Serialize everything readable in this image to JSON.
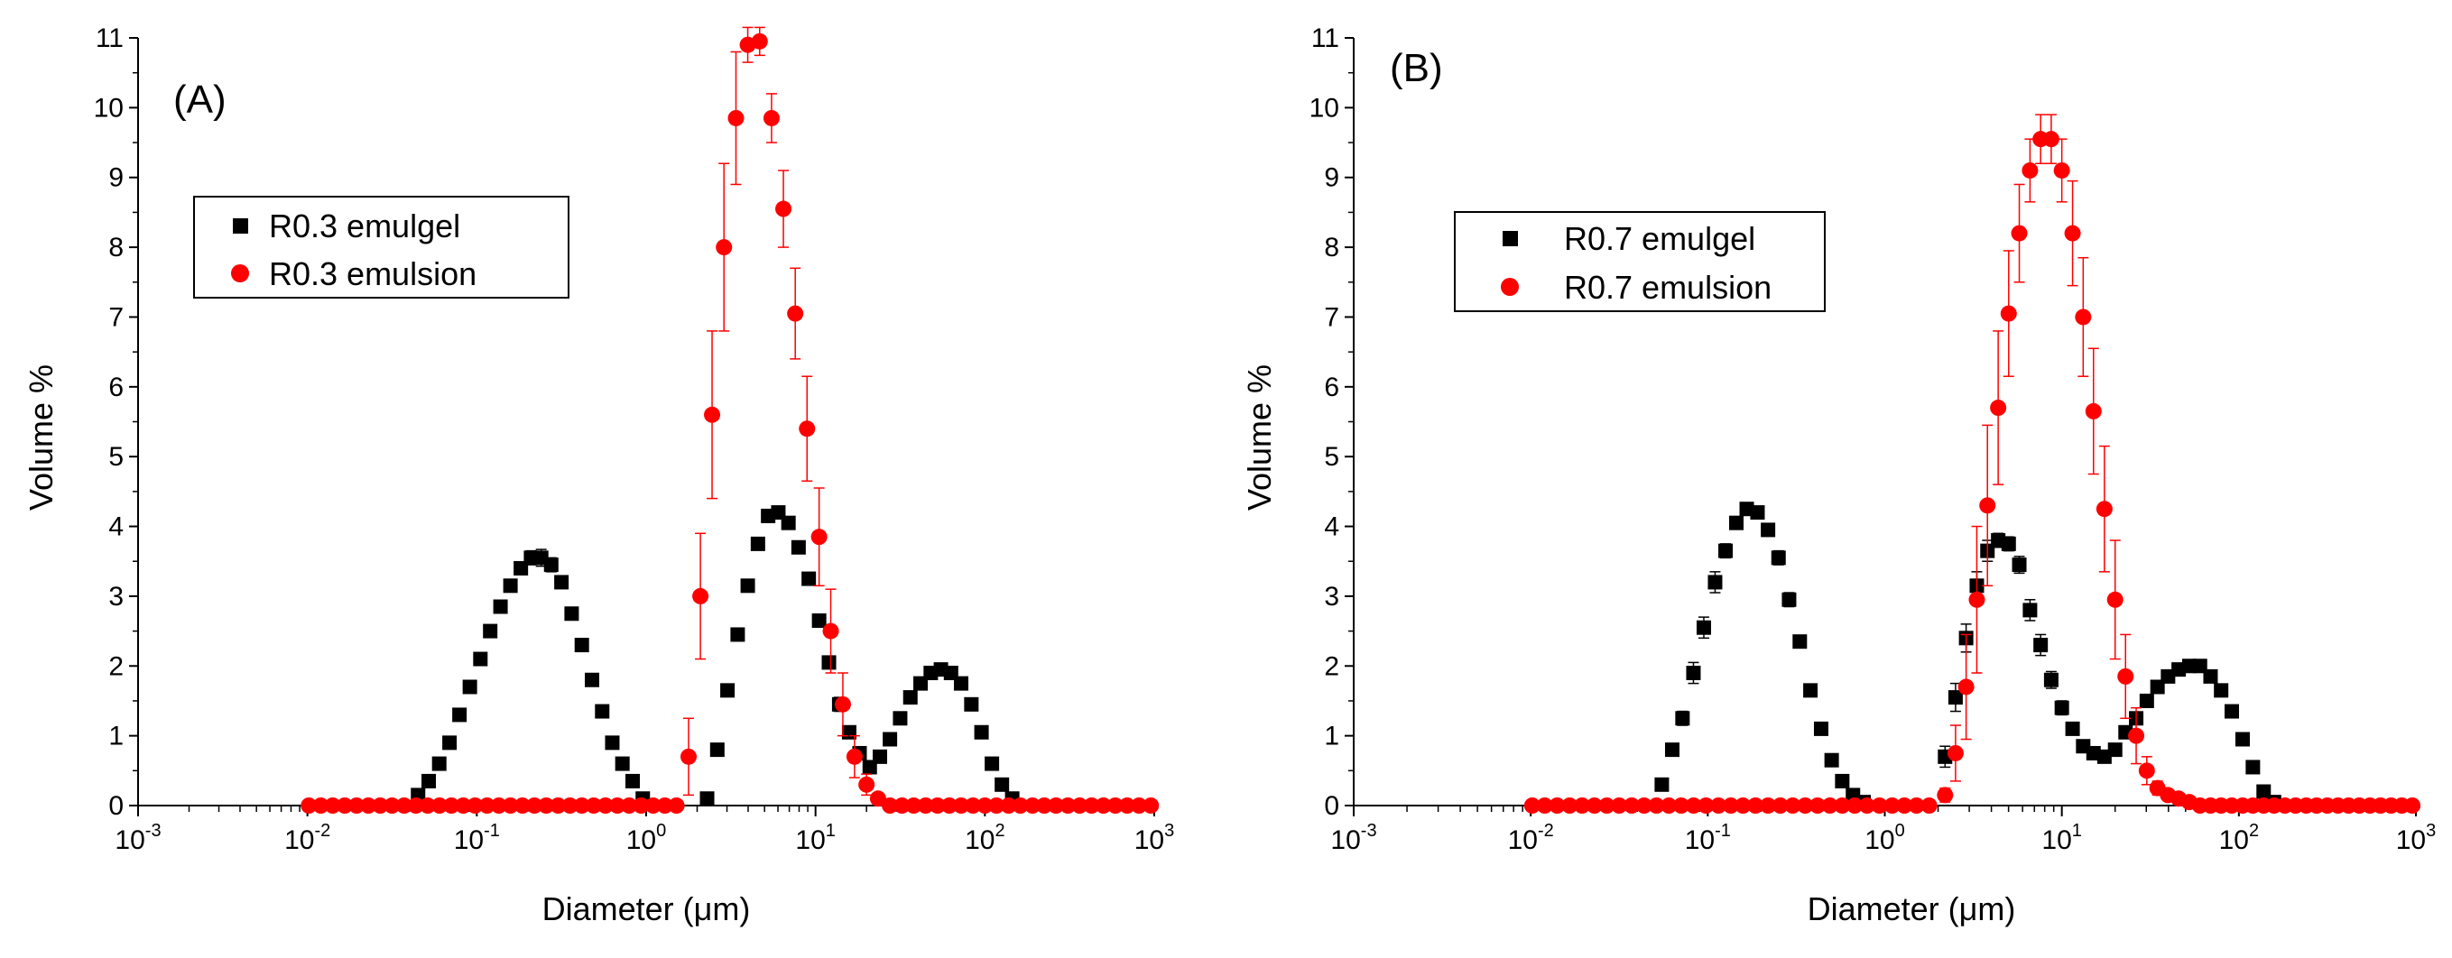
{
  "colors": {
    "emulgel": "#000000",
    "emulsion": "#ff0000",
    "axis": "#000000"
  },
  "chart_data": [
    {
      "type": "scatter",
      "panel_label": "(A)",
      "xlabel": "Diameter (μm)",
      "ylabel": "Volume %",
      "xscale": "log",
      "xlim": [
        0.001,
        1000
      ],
      "ylim": [
        0,
        11
      ],
      "xtick_labels": [
        "10-3",
        "10-2",
        "10-1",
        "100",
        "101",
        "102",
        "103"
      ],
      "ytick_labels": [
        "0",
        "1",
        "2",
        "3",
        "4",
        "5",
        "6",
        "7",
        "8",
        "9",
        "10",
        "11"
      ],
      "legend_position": "upper-left",
      "series": [
        {
          "name": "R0.3 emulgel",
          "marker": "square",
          "color": "#000000",
          "x": [
            0.045,
            0.052,
            0.06,
            0.069,
            0.079,
            0.091,
            0.105,
            0.12,
            0.138,
            0.158,
            0.182,
            0.209,
            0.24,
            0.275,
            0.316,
            0.363,
            0.417,
            0.479,
            0.55,
            0.631,
            0.724,
            0.832,
            0.955,
            2.29,
            2.63,
            3.02,
            3.47,
            3.98,
            4.57,
            5.25,
            6.03,
            6.92,
            7.94,
            9.12,
            10.5,
            12.0,
            13.8,
            15.8,
            18.2,
            20.9,
            24.0,
            27.5,
            31.6,
            36.3,
            41.7,
            47.9,
            55.0,
            63.1,
            72.4,
            83.2,
            95.5,
            110,
            126,
            145
          ],
          "y": [
            0.15,
            0.35,
            0.6,
            0.9,
            1.3,
            1.7,
            2.1,
            2.5,
            2.85,
            3.15,
            3.4,
            3.55,
            3.55,
            3.45,
            3.2,
            2.75,
            2.3,
            1.8,
            1.35,
            0.9,
            0.6,
            0.35,
            0.1,
            0.1,
            0.8,
            1.65,
            2.45,
            3.15,
            3.75,
            4.15,
            4.2,
            4.05,
            3.7,
            3.25,
            2.65,
            2.05,
            1.45,
            1.05,
            0.75,
            0.55,
            0.7,
            0.95,
            1.25,
            1.55,
            1.75,
            1.9,
            1.95,
            1.9,
            1.75,
            1.45,
            1.05,
            0.6,
            0.3,
            0.1
          ],
          "yerr": [
            0,
            0,
            0,
            0,
            0,
            0,
            0,
            0,
            0,
            0,
            0.08,
            0.1,
            0.12,
            0.1,
            0.08,
            0,
            0,
            0,
            0,
            0,
            0,
            0,
            0,
            0,
            0,
            0,
            0,
            0,
            0,
            0,
            0,
            0,
            0,
            0,
            0,
            0.08,
            0.1,
            0.08,
            0,
            0,
            0,
            0,
            0,
            0,
            0,
            0,
            0,
            0,
            0,
            0,
            0,
            0,
            0,
            0
          ]
        },
        {
          "name": "R0.3 emulsion",
          "marker": "circle",
          "color": "#ff0000",
          "x": [
            0.0102,
            0.012,
            0.0141,
            0.0166,
            0.0195,
            0.0229,
            0.0269,
            0.0316,
            0.0372,
            0.0437,
            0.0513,
            0.0603,
            0.0708,
            0.0832,
            0.0977,
            0.115,
            0.135,
            0.158,
            0.186,
            0.219,
            0.257,
            0.302,
            0.355,
            0.417,
            0.49,
            0.575,
            0.676,
            0.794,
            0.933,
            1.1,
            1.29,
            1.51,
            1.78,
            2.09,
            2.45,
            2.88,
            3.39,
            3.98,
            4.68,
            5.5,
            6.46,
            7.59,
            8.91,
            10.5,
            12.3,
            14.5,
            17.0,
            20.0,
            23.4,
            27.5,
            32.4,
            38.0,
            44.7,
            52.5,
            61.7,
            72.4,
            85.1,
            100,
            117,
            138,
            162,
            191,
            224,
            263,
            309,
            363,
            427,
            501,
            589,
            692,
            813,
            955
          ],
          "y": [
            0,
            0,
            0,
            0,
            0,
            0,
            0,
            0,
            0,
            0,
            0,
            0,
            0,
            0,
            0,
            0,
            0,
            0,
            0,
            0,
            0,
            0,
            0,
            0,
            0,
            0,
            0,
            0,
            0,
            0,
            0,
            0,
            0.7,
            3.0,
            5.6,
            8.0,
            9.85,
            10.9,
            10.95,
            9.85,
            8.55,
            7.05,
            5.4,
            3.85,
            2.5,
            1.45,
            0.7,
            0.3,
            0.1,
            0,
            0,
            0,
            0,
            0,
            0,
            0,
            0,
            0,
            0,
            0,
            0,
            0,
            0,
            0,
            0,
            0,
            0,
            0,
            0,
            0,
            0,
            0
          ],
          "yerr": [
            0,
            0,
            0,
            0,
            0,
            0,
            0,
            0,
            0,
            0,
            0,
            0,
            0,
            0,
            0,
            0,
            0,
            0,
            0,
            0,
            0,
            0,
            0,
            0,
            0,
            0,
            0,
            0,
            0,
            0,
            0,
            0,
            0.55,
            0.9,
            1.2,
            1.2,
            0.95,
            0.25,
            0.2,
            0.35,
            0.55,
            0.65,
            0.75,
            0.7,
            0.6,
            0.45,
            0.3,
            0.15,
            0,
            0,
            0,
            0,
            0,
            0,
            0,
            0,
            0,
            0,
            0,
            0,
            0,
            0,
            0,
            0,
            0,
            0,
            0,
            0,
            0,
            0,
            0,
            0
          ]
        }
      ]
    },
    {
      "type": "scatter",
      "panel_label": "(B)",
      "xlabel": "Diameter (μm)",
      "ylabel": "Volume %",
      "xscale": "log",
      "xlim": [
        0.001,
        1000
      ],
      "ylim": [
        0,
        11
      ],
      "xtick_labels": [
        "10-3",
        "10-2",
        "10-1",
        "100",
        "101",
        "102",
        "103"
      ],
      "ytick_labels": [
        "0",
        "1",
        "2",
        "3",
        "4",
        "5",
        "6",
        "7",
        "8",
        "9",
        "10",
        "11"
      ],
      "legend_position": "upper-left",
      "series": [
        {
          "name": "R0.7 emulgel",
          "marker": "square",
          "color": "#000000",
          "x": [
            0.055,
            0.063,
            0.072,
            0.083,
            0.095,
            0.11,
            0.126,
            0.145,
            0.166,
            0.191,
            0.219,
            0.251,
            0.288,
            0.331,
            0.38,
            0.437,
            0.501,
            0.575,
            0.661,
            0.759,
            2.19,
            2.51,
            2.88,
            3.31,
            3.8,
            4.37,
            5.01,
            5.75,
            6.61,
            7.59,
            8.71,
            10.0,
            11.5,
            13.2,
            15.1,
            17.4,
            20.0,
            22.9,
            26.3,
            30.2,
            34.7,
            39.8,
            45.7,
            52.5,
            60.3,
            69.2,
            79.4,
            91.2,
            105,
            120,
            138,
            158
          ],
          "y": [
            0.3,
            0.8,
            1.25,
            1.9,
            2.55,
            3.2,
            3.65,
            4.05,
            4.25,
            4.2,
            3.95,
            3.55,
            2.95,
            2.35,
            1.65,
            1.1,
            0.65,
            0.35,
            0.15,
            0.05,
            0.7,
            1.55,
            2.4,
            3.15,
            3.65,
            3.8,
            3.75,
            3.45,
            2.8,
            2.3,
            1.8,
            1.4,
            1.1,
            0.85,
            0.75,
            0.7,
            0.8,
            1.05,
            1.25,
            1.5,
            1.7,
            1.85,
            1.95,
            2.0,
            2.0,
            1.85,
            1.65,
            1.35,
            0.95,
            0.55,
            0.2,
            0.05
          ],
          "yerr": [
            0,
            0,
            0.1,
            0.15,
            0.15,
            0.15,
            0.1,
            0.08,
            0.06,
            0.06,
            0.08,
            0.1,
            0.1,
            0,
            0,
            0,
            0,
            0,
            0,
            0,
            0.15,
            0.2,
            0.2,
            0.2,
            0.15,
            0.1,
            0.1,
            0.12,
            0.15,
            0.15,
            0.12,
            0.1,
            0,
            0,
            0,
            0,
            0,
            0,
            0,
            0,
            0,
            0,
            0,
            0,
            0,
            0,
            0,
            0,
            0,
            0,
            0,
            0
          ]
        },
        {
          "name": "R0.7 emulsion",
          "marker": "circle",
          "color": "#ff0000",
          "x": [
            0.0102,
            0.012,
            0.0141,
            0.0166,
            0.0195,
            0.0229,
            0.0269,
            0.0316,
            0.0372,
            0.0437,
            0.0513,
            0.0603,
            0.0708,
            0.0832,
            0.0977,
            0.115,
            0.135,
            0.158,
            0.186,
            0.219,
            0.257,
            0.302,
            0.355,
            0.417,
            0.49,
            0.575,
            0.676,
            0.794,
            0.933,
            1.1,
            1.29,
            1.51,
            1.78,
            2.19,
            2.51,
            2.88,
            3.31,
            3.8,
            4.37,
            5.01,
            5.75,
            6.61,
            7.59,
            8.71,
            10.0,
            11.5,
            13.2,
            15.1,
            17.4,
            20.0,
            22.9,
            26.3,
            30.2,
            34.7,
            39.8,
            45.7,
            52.5,
            60.3,
            69.2,
            79.4,
            91.2,
            105,
            120,
            138,
            158,
            182,
            209,
            240,
            275,
            316,
            363,
            417,
            479,
            550,
            631,
            724,
            832,
            955
          ],
          "y": [
            0,
            0,
            0,
            0,
            0,
            0,
            0,
            0,
            0,
            0,
            0,
            0,
            0,
            0,
            0,
            0,
            0,
            0,
            0,
            0,
            0,
            0,
            0,
            0,
            0,
            0,
            0,
            0,
            0,
            0,
            0,
            0,
            0,
            0.15,
            0.75,
            1.7,
            2.95,
            4.3,
            5.7,
            7.05,
            8.2,
            9.1,
            9.55,
            9.55,
            9.1,
            8.2,
            7.0,
            5.65,
            4.25,
            2.95,
            1.85,
            1.0,
            0.5,
            0.25,
            0.15,
            0.1,
            0.05,
            0,
            0,
            0,
            0,
            0,
            0,
            0,
            0,
            0,
            0,
            0,
            0,
            0,
            0,
            0,
            0,
            0,
            0,
            0,
            0,
            0
          ],
          "yerr": [
            0,
            0,
            0,
            0,
            0,
            0,
            0,
            0,
            0,
            0,
            0,
            0,
            0,
            0,
            0,
            0,
            0,
            0,
            0,
            0,
            0,
            0,
            0,
            0,
            0,
            0,
            0,
            0,
            0,
            0,
            0,
            0,
            0,
            0.1,
            0.4,
            0.75,
            1.05,
            1.15,
            1.1,
            0.9,
            0.7,
            0.45,
            0.35,
            0.35,
            0.45,
            0.75,
            0.85,
            0.9,
            0.9,
            0.85,
            0.6,
            0.4,
            0.2,
            0.1,
            0,
            0,
            0,
            0,
            0,
            0,
            0,
            0,
            0,
            0,
            0,
            0,
            0,
            0,
            0,
            0,
            0,
            0,
            0,
            0,
            0,
            0,
            0,
            0
          ]
        }
      ]
    }
  ]
}
